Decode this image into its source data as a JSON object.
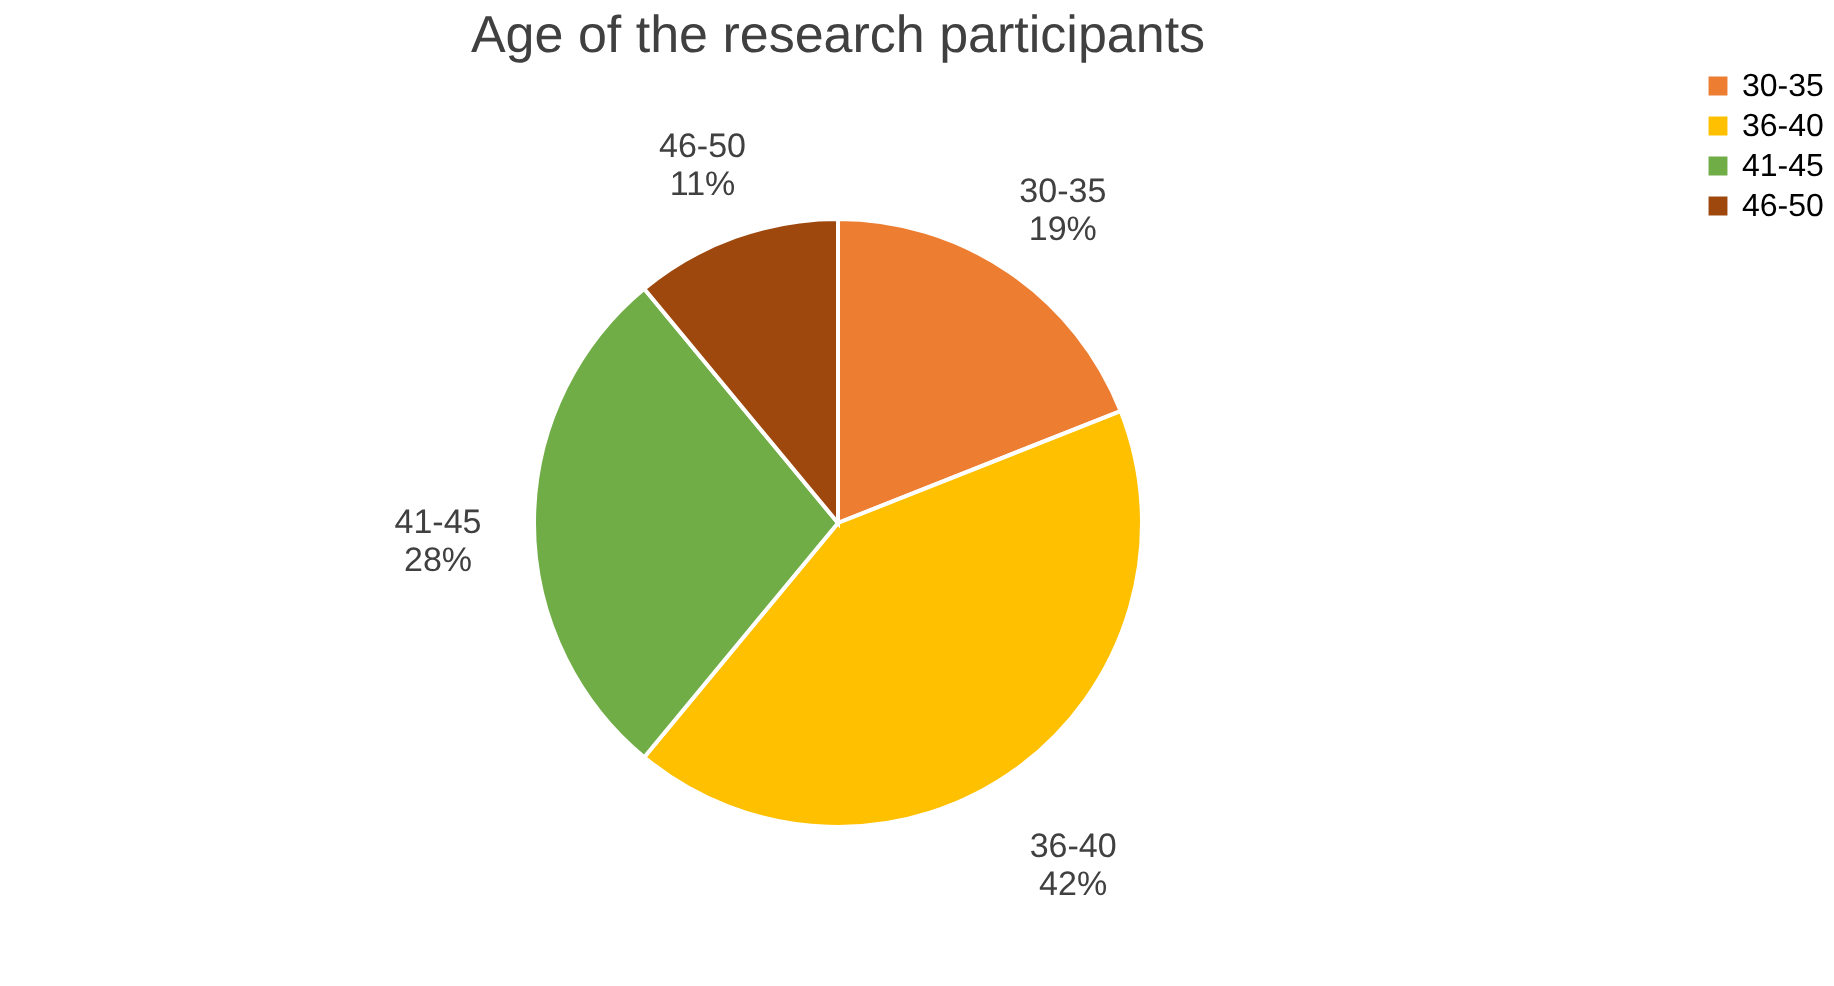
{
  "chart_data": {
    "type": "pie",
    "title": "Age of the research participants",
    "categories": [
      "30-35",
      "36-40",
      "41-45",
      "46-50"
    ],
    "values": [
      19,
      42,
      28,
      11
    ],
    "colors": [
      "#ed7d31",
      "#ffc000",
      "#70ad47",
      "#9e480e"
    ],
    "value_labels": [
      "19%",
      "42%",
      "28%",
      "11%"
    ],
    "legend": "right"
  }
}
